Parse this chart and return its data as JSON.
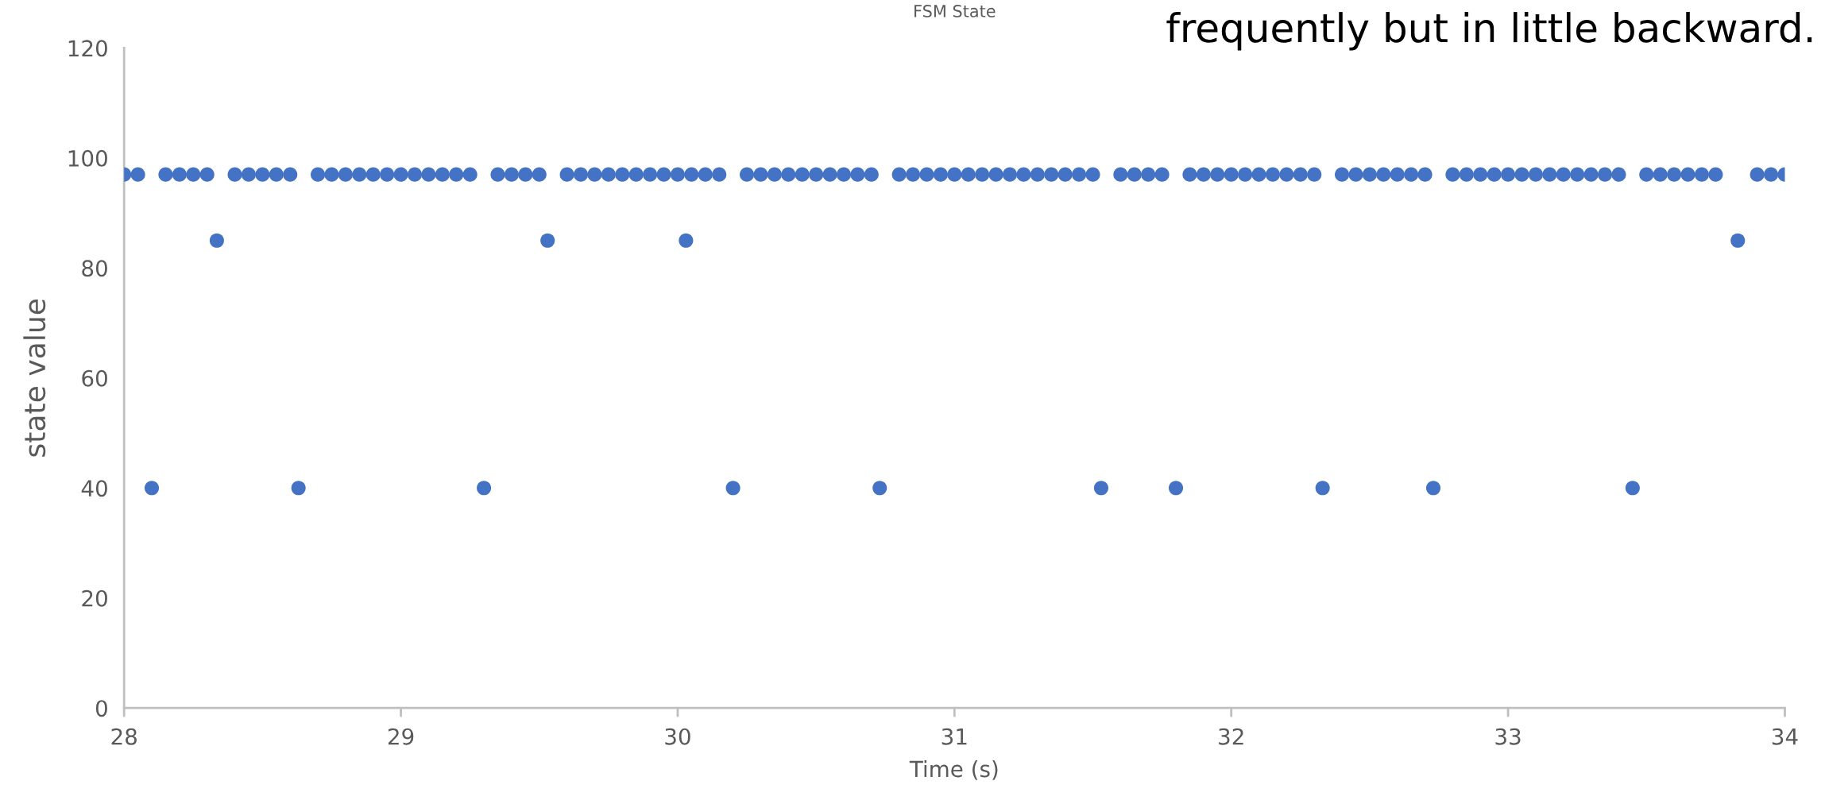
{
  "chart_data": {
    "type": "scatter",
    "title": "FSM State",
    "xlabel": "Time (s)",
    "ylabel": "state value",
    "annotations": [
      "frequently but in little backward."
    ],
    "xlim": [
      28,
      34
    ],
    "xticks": [
      28,
      29,
      30,
      31,
      32,
      33,
      34
    ],
    "ylim": [
      0,
      120
    ],
    "yticks": [
      0,
      20,
      40,
      60,
      80,
      100,
      120
    ],
    "grid": false,
    "marker": "circle",
    "series": [
      {
        "color": "#4472c4",
        "x": [
          28.0,
          28.05,
          28.15,
          28.2,
          28.25,
          28.3,
          28.4,
          28.45,
          28.5,
          28.55,
          28.6,
          28.7,
          28.75,
          28.8,
          28.85,
          28.9,
          28.95,
          29.0,
          29.05,
          29.1,
          29.15,
          29.2,
          29.25,
          29.35,
          29.4,
          29.45,
          29.5,
          29.6,
          29.65,
          29.7,
          29.75,
          29.8,
          29.85,
          29.9,
          29.95,
          30.0,
          30.05,
          30.1,
          30.15,
          30.25,
          30.3,
          30.35,
          30.4,
          30.45,
          30.5,
          30.55,
          30.6,
          30.65,
          30.7,
          30.8,
          30.85,
          30.9,
          30.95,
          31.0,
          31.05,
          31.1,
          31.15,
          31.2,
          31.25,
          31.3,
          31.35,
          31.4,
          31.45,
          31.5,
          31.6,
          31.65,
          31.7,
          31.75,
          31.85,
          31.9,
          31.95,
          32.0,
          32.05,
          32.1,
          32.15,
          32.2,
          32.25,
          32.3,
          32.4,
          32.45,
          32.5,
          32.55,
          32.6,
          32.65,
          32.7,
          32.8,
          32.85,
          32.9,
          32.95,
          33.0,
          33.05,
          33.1,
          33.15,
          33.2,
          33.25,
          33.3,
          33.35,
          33.4,
          33.5,
          33.55,
          33.6,
          33.65,
          33.7,
          33.75,
          33.9,
          33.95,
          34.0,
          28.1,
          28.335,
          28.63,
          29.3,
          29.53,
          30.03,
          30.2,
          30.73,
          31.53,
          31.8,
          32.33,
          32.73,
          33.45,
          33.83
        ],
        "values": [
          97,
          97,
          97,
          97,
          97,
          97,
          97,
          97,
          97,
          97,
          97,
          97,
          97,
          97,
          97,
          97,
          97,
          97,
          97,
          97,
          97,
          97,
          97,
          97,
          97,
          97,
          97,
          97,
          97,
          97,
          97,
          97,
          97,
          97,
          97,
          97,
          97,
          97,
          97,
          97,
          97,
          97,
          97,
          97,
          97,
          97,
          97,
          97,
          97,
          97,
          97,
          97,
          97,
          97,
          97,
          97,
          97,
          97,
          97,
          97,
          97,
          97,
          97,
          97,
          97,
          97,
          97,
          97,
          97,
          97,
          97,
          97,
          97,
          97,
          97,
          97,
          97,
          97,
          97,
          97,
          97,
          97,
          97,
          97,
          97,
          97,
          97,
          97,
          97,
          97,
          97,
          97,
          97,
          97,
          97,
          97,
          97,
          97,
          97,
          97,
          97,
          97,
          97,
          97,
          97,
          97,
          97,
          40,
          85,
          40,
          40,
          85,
          85,
          40,
          40,
          40,
          40,
          40,
          40,
          40,
          85
        ]
      }
    ]
  }
}
